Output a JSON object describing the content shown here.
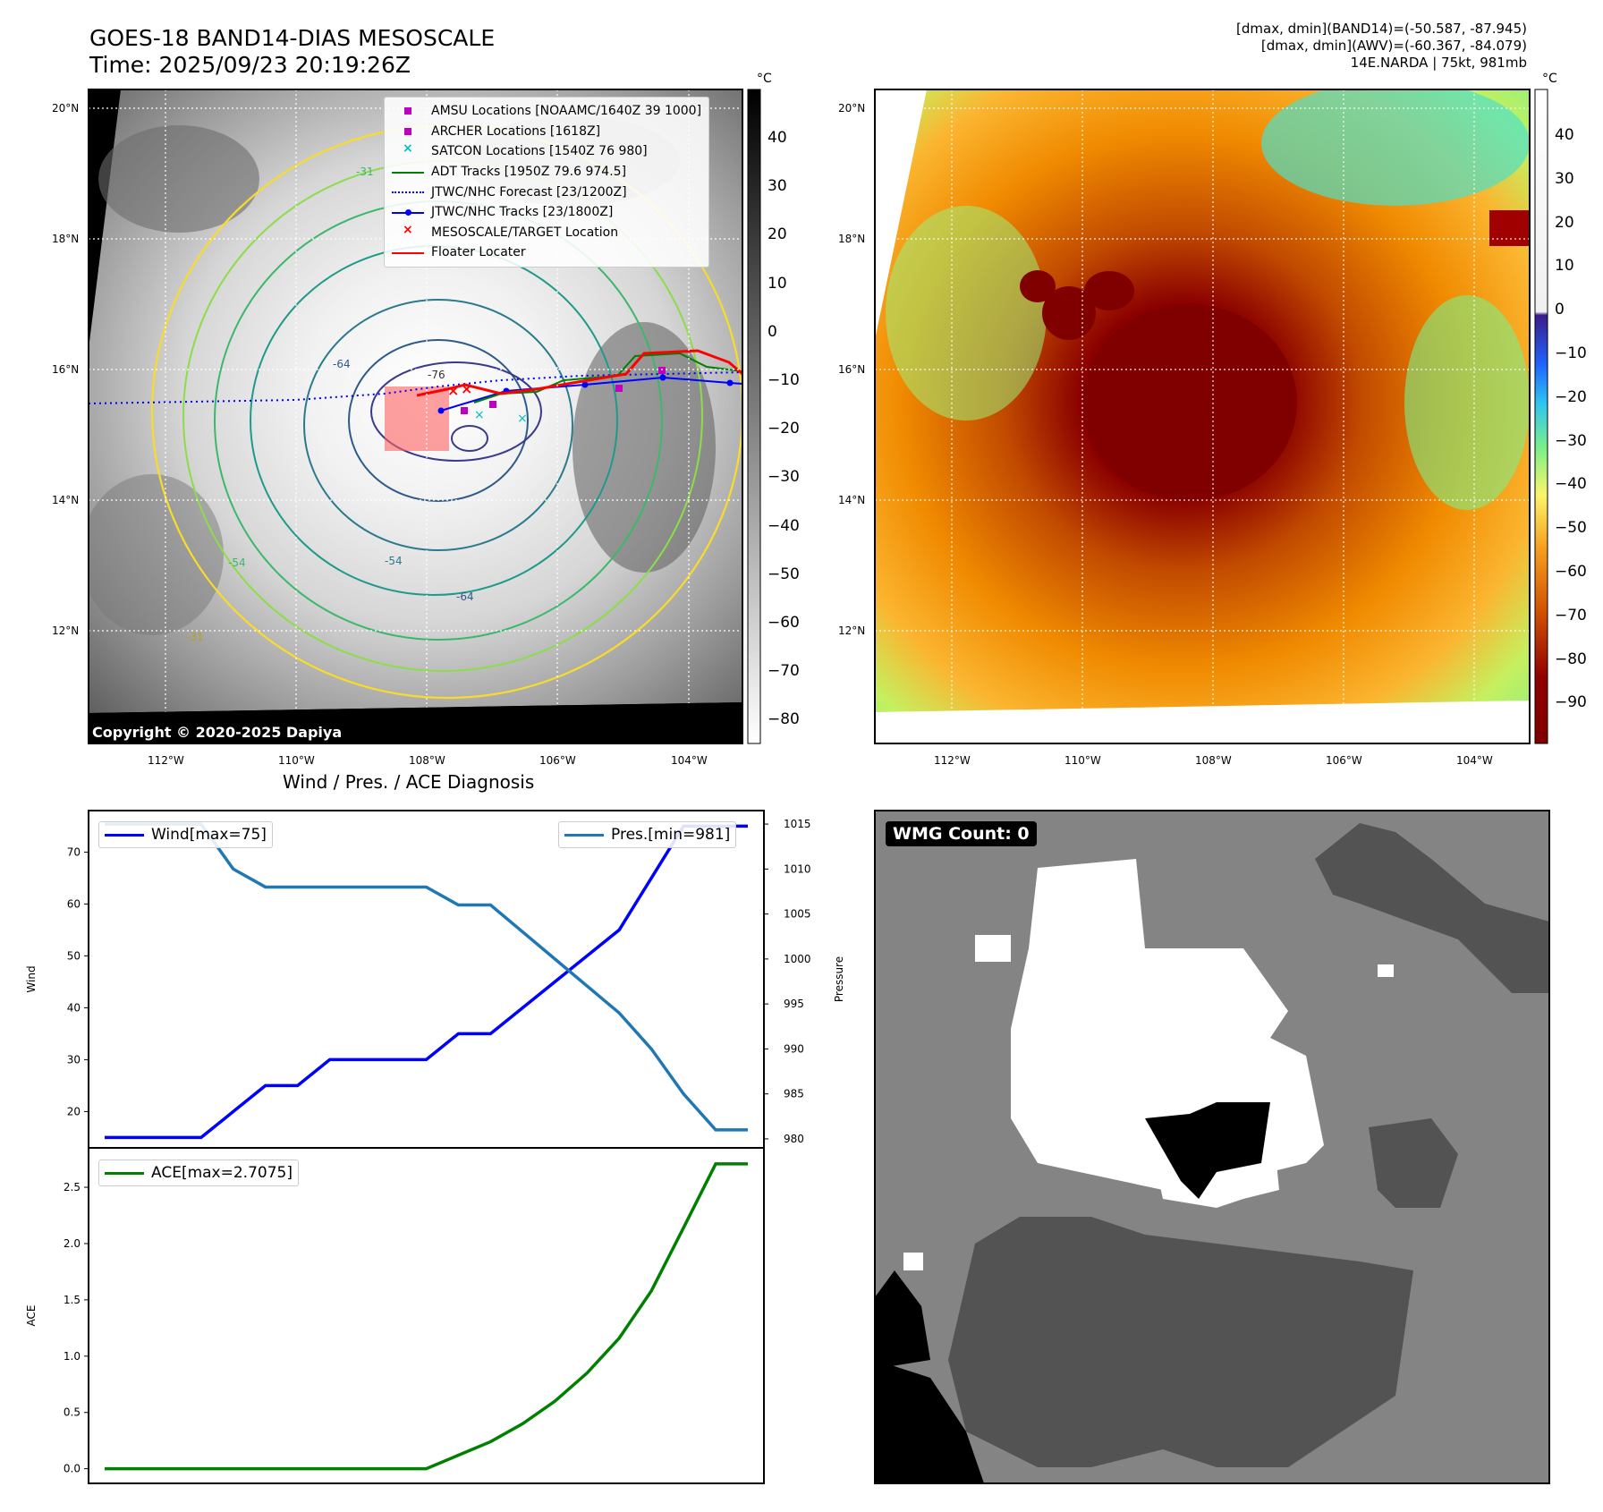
{
  "titles": {
    "top_left_line1": "GOES-18 BAND14-DIAS MESOSCALE",
    "top_left_line2": "Time: 2025/09/23 20:19:26Z",
    "info_line1": "[dmax, dmin](BAND14)=(-50.587, -87.945)",
    "info_line2": "[dmax, dmin](AWV)=(-60.367, -84.079)",
    "info_line3": "14E.NARDA | 75kt, 981mb",
    "diag_title": "Wind / Pres. / ACE Diagnosis"
  },
  "map": {
    "lat_ticks": [
      "20°N",
      "18°N",
      "16°N",
      "14°N",
      "12°N"
    ],
    "lon_ticks": [
      "112°W",
      "110°W",
      "108°W",
      "106°W",
      "104°W"
    ],
    "colorbar_unit": "°C",
    "gray_cbar_ticks": [
      "40",
      "30",
      "20",
      "10",
      "0",
      "−10",
      "−20",
      "−30",
      "−40",
      "−50",
      "−60",
      "−70",
      "−80"
    ],
    "color_cbar_ticks": [
      "40",
      "30",
      "20",
      "10",
      "0",
      "−10",
      "−20",
      "−30",
      "−40",
      "−50",
      "−60",
      "−70",
      "−80",
      "−90"
    ],
    "copyright": "Copyright © 2020-2025 Dapiya",
    "contour_labels": [
      "-76",
      "-64",
      "-54",
      "-31",
      "-54",
      "-64",
      "-31"
    ]
  },
  "legend": [
    {
      "label": "AMSU Locations [NOAAMC/1640Z 39 1000]",
      "marker": "square",
      "color": "#bf00bf"
    },
    {
      "label": "ARCHER Locations [1618Z]",
      "marker": "square",
      "color": "#bf00bf"
    },
    {
      "label": "SATCON Locations [1540Z 76 980]",
      "marker": "x",
      "color": "#00bfbf"
    },
    {
      "label": "ADT Tracks [1950Z 79.6 974.5]",
      "marker": "line",
      "color": "#008000"
    },
    {
      "label": "JTWC/NHC Forecast [23/1200Z]",
      "marker": "dotted",
      "color": "#0000ff"
    },
    {
      "label": "JTWC/NHC Tracks [23/1800Z]",
      "marker": "line-dot",
      "color": "#0000ff"
    },
    {
      "label": "MESOSCALE/TARGET Location",
      "marker": "x",
      "color": "#ff0000"
    },
    {
      "label": "Floater Locater",
      "marker": "line",
      "color": "#ff0000"
    }
  ],
  "wmg": {
    "label": "WMG Count: 0"
  },
  "chart_data": [
    {
      "type": "line",
      "title": "Wind / Pres. / ACE Diagnosis",
      "x": [
        0,
        1,
        2,
        3,
        4,
        5,
        6,
        7,
        8,
        9,
        10,
        11,
        12,
        13,
        14,
        15,
        16,
        17,
        18,
        19,
        20
      ],
      "series": [
        {
          "name": "Wind[max=75]",
          "axis": "left",
          "color": "#0000ff",
          "values": [
            15,
            15,
            15,
            15,
            20,
            25,
            25,
            30,
            30,
            30,
            30,
            35,
            35,
            40,
            45,
            50,
            55,
            65,
            75,
            75,
            75
          ]
        },
        {
          "name": "Pres.[min=981]",
          "axis": "right",
          "color": "#1f77b4",
          "values": [
            1015,
            1015,
            1015,
            1015,
            1010,
            1008,
            1008,
            1008,
            1008,
            1008,
            1008,
            1006,
            1006,
            1003,
            1000,
            997,
            994,
            990,
            985,
            981,
            981
          ]
        }
      ],
      "ylabel": "Wind",
      "ylabel_right": "Pressure",
      "yticks": [
        20,
        30,
        40,
        50,
        60,
        70
      ],
      "yticks_right": [
        980,
        985,
        990,
        995,
        1000,
        1005,
        1010,
        1015
      ],
      "ylim": [
        13,
        78
      ],
      "ylim_right": [
        979,
        1016.5
      ]
    },
    {
      "type": "line",
      "x": [
        0,
        1,
        2,
        3,
        4,
        5,
        6,
        7,
        8,
        9,
        10,
        11,
        12,
        13,
        14,
        15,
        16,
        17,
        18,
        19,
        20
      ],
      "series": [
        {
          "name": "ACE[max=2.7075]",
          "color": "#008000",
          "values": [
            0,
            0,
            0,
            0,
            0,
            0,
            0,
            0,
            0,
            0,
            0,
            0.12,
            0.24,
            0.4,
            0.6,
            0.85,
            1.16,
            1.58,
            2.14,
            2.7075,
            2.7075
          ]
        }
      ],
      "ylabel": "ACE",
      "yticks": [
        0.0,
        0.5,
        1.0,
        1.5,
        2.0,
        2.5
      ],
      "yticks_labels": [
        "0.0",
        "0.5",
        "1.0",
        "1.5",
        "2.0",
        "2.5"
      ],
      "ylim": [
        -0.13,
        2.85
      ]
    }
  ]
}
